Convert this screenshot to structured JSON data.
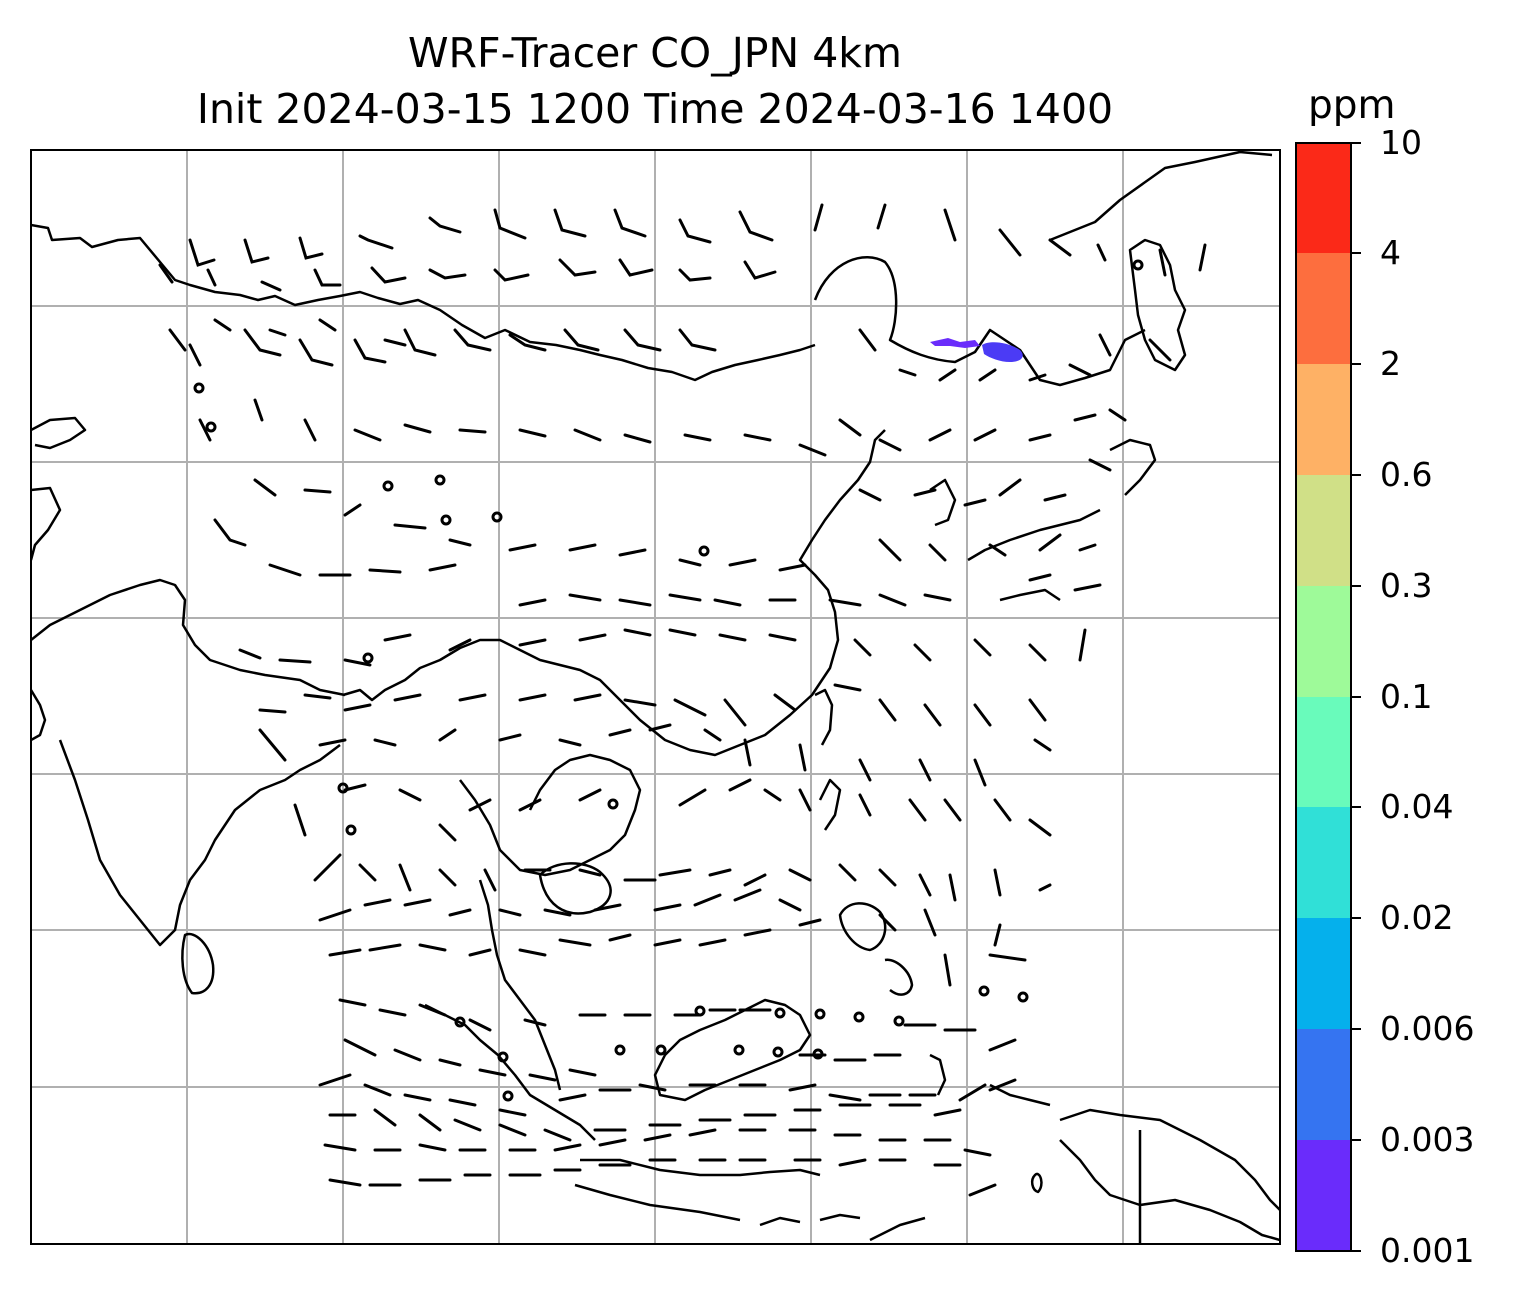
{
  "title": {
    "line1": "WRF-Tracer CO_JPN 4km",
    "line2": "Init 2024-03-15 1200 Time 2024-03-16 1400"
  },
  "colorbar": {
    "unit": "ppm",
    "ticks": [
      "0.001",
      "0.003",
      "0.006",
      "0.02",
      "0.04",
      "0.1",
      "0.3",
      "0.6",
      "2",
      "4",
      "10"
    ],
    "colors": [
      "#6a2cfb",
      "#3574f1",
      "#05b0ec",
      "#30e0d7",
      "#69fbbb",
      "#9efa99",
      "#d0e087",
      "#feb165",
      "#fd6e3e",
      "#fb2918"
    ]
  },
  "map": {
    "gridlines": true,
    "coastlines": true,
    "wind_barbs": true,
    "tracer_plume_color": "#4b3bf5",
    "station_markers": true
  }
}
